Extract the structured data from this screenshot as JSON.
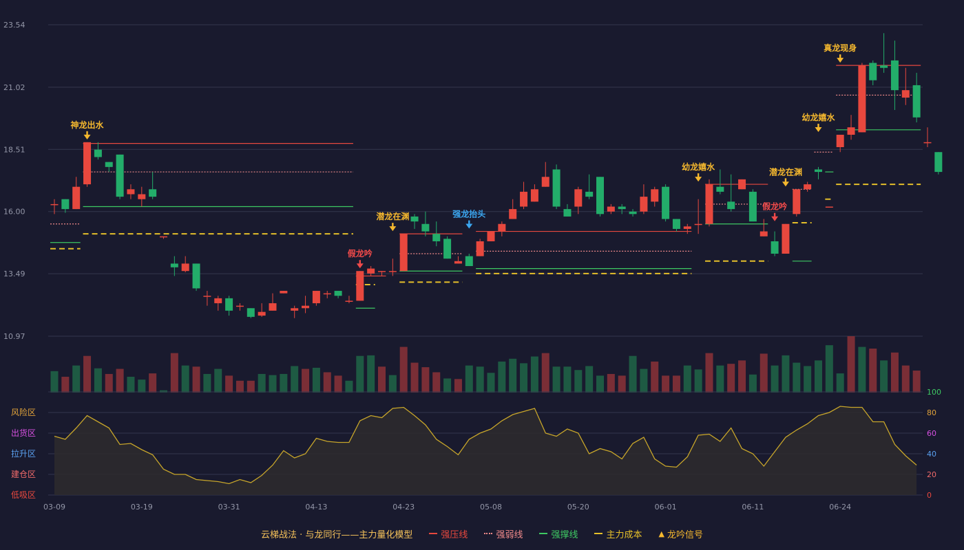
{
  "colors": {
    "background": "#191a2e",
    "grid": "#34374d",
    "axis_text": "#9497a8",
    "up": "#e8483e",
    "down": "#23ad6a",
    "vol_up": "#7a2e36",
    "vol_down": "#1e5a43",
    "resistance": "#e8483e",
    "weak": "#f08a8a",
    "support": "#3ec963",
    "cost": "#e6c02a",
    "signal": "#f5b82e",
    "signal_blue": "#3ba7f0",
    "signal_red": "#f04a4a",
    "osc_line": "#c8a62a",
    "osc_fill": "#2e2b2d"
  },
  "chart_data": {
    "type": "candlestick",
    "price_axis": {
      "ticks": [
        "23.54",
        "21.02",
        "18.51",
        "16.00",
        "13.49",
        "10.97"
      ],
      "ylim": [
        10.97,
        23.54
      ]
    },
    "x_tick_labels": [
      {
        "i": 0,
        "label": "03-09"
      },
      {
        "i": 8,
        "label": "03-19"
      },
      {
        "i": 16,
        "label": "03-31"
      },
      {
        "i": 24,
        "label": "04-13"
      },
      {
        "i": 32,
        "label": "04-23"
      },
      {
        "i": 40,
        "label": "05-08"
      },
      {
        "i": 48,
        "label": "05-20"
      },
      {
        "i": 56,
        "label": "06-01"
      },
      {
        "i": 64,
        "label": "06-11"
      },
      {
        "i": 72,
        "label": "06-24"
      }
    ],
    "candles": [
      [
        16.3,
        16.3,
        15.9,
        16.5
      ],
      [
        16.5,
        16.1,
        15.95,
        16.5
      ],
      [
        16.1,
        17.0,
        16.1,
        17.4
      ],
      [
        17.1,
        18.8,
        17.0,
        18.8
      ],
      [
        18.5,
        18.2,
        18.1,
        18.8
      ],
      [
        18.0,
        17.8,
        17.6,
        18.0
      ],
      [
        18.3,
        16.6,
        16.5,
        18.3
      ],
      [
        16.7,
        16.9,
        16.5,
        17.1
      ],
      [
        16.5,
        16.7,
        16.2,
        17.0
      ],
      [
        16.9,
        16.6,
        16.5,
        17.6
      ],
      [
        15.0,
        15.0,
        14.9,
        15.0
      ],
      [
        13.9,
        13.75,
        13.4,
        14.2
      ],
      [
        13.6,
        13.9,
        13.55,
        14.2
      ],
      [
        13.9,
        12.9,
        12.8,
        13.9
      ],
      [
        12.6,
        12.6,
        12.2,
        12.8
      ],
      [
        12.3,
        12.5,
        12.0,
        12.6
      ],
      [
        12.5,
        12.0,
        11.8,
        12.6
      ],
      [
        12.2,
        12.2,
        12.0,
        12.3
      ],
      [
        12.1,
        11.75,
        11.7,
        12.1
      ],
      [
        11.8,
        11.95,
        11.75,
        12.3
      ],
      [
        12.0,
        12.3,
        12.0,
        12.7
      ],
      [
        12.7,
        12.8,
        12.7,
        12.8
      ],
      [
        12.0,
        12.1,
        11.7,
        12.2
      ],
      [
        12.1,
        12.2,
        11.9,
        12.6
      ],
      [
        12.3,
        12.8,
        12.2,
        12.8
      ],
      [
        12.7,
        12.7,
        12.5,
        12.8
      ],
      [
        12.8,
        12.6,
        12.5,
        12.8
      ],
      [
        12.4,
        12.4,
        12.3,
        12.6
      ],
      [
        12.4,
        13.6,
        12.4,
        13.6
      ],
      [
        13.5,
        13.7,
        13.4,
        13.8
      ],
      [
        13.6,
        13.6,
        13.4,
        13.6
      ],
      [
        13.6,
        13.6,
        13.4,
        14.1
      ],
      [
        13.6,
        15.1,
        13.6,
        15.1
      ],
      [
        15.8,
        15.6,
        15.3,
        15.9
      ],
      [
        15.5,
        15.2,
        15.0,
        16.0
      ],
      [
        15.1,
        14.8,
        14.6,
        15.6
      ],
      [
        14.9,
        14.1,
        14.1,
        15.0
      ],
      [
        13.9,
        14.0,
        13.9,
        14.2
      ],
      [
        14.2,
        13.8,
        13.8,
        14.3
      ],
      [
        14.2,
        14.8,
        14.2,
        14.9
      ],
      [
        14.8,
        15.2,
        14.8,
        15.2
      ],
      [
        15.2,
        15.5,
        15.0,
        15.6
      ],
      [
        15.7,
        16.1,
        15.7,
        16.5
      ],
      [
        16.2,
        16.8,
        16.1,
        17.2
      ],
      [
        16.4,
        16.9,
        16.4,
        17.1
      ],
      [
        17.0,
        17.4,
        17.0,
        18.0
      ],
      [
        17.7,
        16.2,
        16.1,
        17.9
      ],
      [
        16.1,
        15.8,
        15.8,
        16.3
      ],
      [
        16.2,
        16.9,
        15.9,
        17.0
      ],
      [
        16.8,
        16.6,
        16.5,
        17.5
      ],
      [
        17.4,
        15.9,
        15.8,
        17.4
      ],
      [
        16.0,
        16.2,
        15.9,
        16.3
      ],
      [
        16.2,
        16.1,
        15.9,
        16.3
      ],
      [
        16.0,
        15.9,
        15.8,
        16.1
      ],
      [
        16.0,
        16.6,
        15.9,
        17.1
      ],
      [
        16.4,
        16.9,
        16.2,
        17.0
      ],
      [
        17.0,
        15.7,
        15.6,
        17.1
      ],
      [
        15.7,
        15.3,
        15.2,
        15.7
      ],
      [
        15.3,
        15.4,
        15.1,
        15.5
      ],
      [
        15.5,
        15.5,
        15.1,
        16.5
      ],
      [
        15.5,
        17.1,
        15.4,
        17.3
      ],
      [
        17.0,
        16.8,
        16.7,
        17.7
      ],
      [
        16.4,
        16.1,
        16.0,
        17.5
      ],
      [
        16.9,
        17.3,
        16.9,
        17.3
      ],
      [
        16.8,
        15.6,
        15.6,
        16.9
      ],
      [
        15.0,
        15.2,
        15.0,
        15.7
      ],
      [
        14.8,
        14.3,
        14.2,
        15.2
      ],
      [
        14.3,
        15.5,
        14.3,
        15.5
      ],
      [
        15.9,
        16.9,
        15.8,
        16.9
      ],
      [
        16.9,
        17.1,
        16.8,
        17.2
      ],
      [
        17.7,
        17.6,
        17.3,
        17.8
      ],
      [
        16.2,
        16.2,
        16.2,
        16.2
      ],
      [
        18.6,
        19.1,
        18.4,
        19.1
      ],
      [
        19.1,
        19.4,
        18.9,
        19.9
      ],
      [
        19.2,
        21.9,
        19.2,
        22.0
      ],
      [
        22.0,
        21.3,
        21.1,
        22.1
      ],
      [
        21.9,
        21.8,
        21.6,
        23.2
      ],
      [
        22.1,
        20.9,
        20.1,
        22.9
      ],
      [
        20.6,
        20.9,
        20.3,
        21.8
      ],
      [
        21.1,
        19.8,
        19.6,
        21.6
      ],
      [
        18.8,
        18.8,
        18.6,
        19.4
      ],
      [
        18.4,
        17.6,
        17.5,
        18.4
      ]
    ],
    "volume": [
      [
        0.38,
        0
      ],
      [
        0.28,
        1
      ],
      [
        0.48,
        0
      ],
      [
        0.65,
        1
      ],
      [
        0.43,
        0
      ],
      [
        0.33,
        1
      ],
      [
        0.42,
        1
      ],
      [
        0.28,
        0
      ],
      [
        0.23,
        0
      ],
      [
        0.34,
        1
      ],
      [
        0.04,
        0
      ],
      [
        0.7,
        1
      ],
      [
        0.48,
        0
      ],
      [
        0.46,
        1
      ],
      [
        0.33,
        0
      ],
      [
        0.42,
        0
      ],
      [
        0.3,
        1
      ],
      [
        0.21,
        1
      ],
      [
        0.21,
        1
      ],
      [
        0.33,
        0
      ],
      [
        0.31,
        0
      ],
      [
        0.33,
        0
      ],
      [
        0.47,
        0
      ],
      [
        0.42,
        1
      ],
      [
        0.44,
        0
      ],
      [
        0.36,
        1
      ],
      [
        0.3,
        1
      ],
      [
        0.21,
        0
      ],
      [
        0.65,
        0
      ],
      [
        0.66,
        0
      ],
      [
        0.46,
        1
      ],
      [
        0.31,
        0
      ],
      [
        0.81,
        1
      ],
      [
        0.53,
        1
      ],
      [
        0.45,
        1
      ],
      [
        0.36,
        1
      ],
      [
        0.25,
        0
      ],
      [
        0.24,
        1
      ],
      [
        0.48,
        0
      ],
      [
        0.46,
        0
      ],
      [
        0.35,
        0
      ],
      [
        0.55,
        0
      ],
      [
        0.6,
        0
      ],
      [
        0.52,
        0
      ],
      [
        0.64,
        0
      ],
      [
        0.7,
        1
      ],
      [
        0.46,
        0
      ],
      [
        0.46,
        0
      ],
      [
        0.4,
        0
      ],
      [
        0.47,
        0
      ],
      [
        0.3,
        0
      ],
      [
        0.33,
        1
      ],
      [
        0.3,
        1
      ],
      [
        0.65,
        0
      ],
      [
        0.42,
        0
      ],
      [
        0.55,
        1
      ],
      [
        0.3,
        1
      ],
      [
        0.3,
        1
      ],
      [
        0.48,
        0
      ],
      [
        0.41,
        0
      ],
      [
        0.7,
        1
      ],
      [
        0.48,
        0
      ],
      [
        0.51,
        1
      ],
      [
        0.57,
        1
      ],
      [
        0.32,
        0
      ],
      [
        0.69,
        1
      ],
      [
        0.48,
        0
      ],
      [
        0.66,
        0
      ],
      [
        0.53,
        0
      ],
      [
        0.47,
        0
      ],
      [
        0.57,
        0
      ],
      [
        0.84,
        0
      ],
      [
        0.34,
        0
      ],
      [
        1.0,
        1
      ],
      [
        0.81,
        0
      ],
      [
        0.78,
        1
      ],
      [
        0.57,
        0
      ],
      [
        0.71,
        1
      ],
      [
        0.48,
        1
      ],
      [
        0.39,
        1
      ]
    ],
    "oscillator": {
      "ylim": [
        0,
        100
      ],
      "ticks": [
        "100",
        "80",
        "60",
        "40",
        "20",
        "0"
      ],
      "zones": [
        "风险区",
        "出货区",
        "拉升区",
        "建仓区",
        "低吸区"
      ],
      "values": [
        57,
        54,
        65,
        77,
        71,
        65,
        49,
        50,
        44,
        39,
        25,
        20,
        20,
        15,
        14,
        13,
        11,
        15,
        12,
        19,
        29,
        43,
        36,
        40,
        55,
        52,
        51,
        51,
        72,
        77,
        75,
        84,
        85,
        77,
        68,
        54,
        47,
        39,
        54,
        60,
        64,
        72,
        78,
        81,
        84,
        60,
        57,
        64,
        60,
        40,
        45,
        42,
        35,
        50,
        56,
        35,
        28,
        27,
        37,
        58,
        59,
        52,
        65,
        45,
        40,
        28,
        42,
        56,
        63,
        69,
        77,
        80,
        86,
        85,
        85,
        71,
        71,
        49,
        38,
        29
      ]
    },
    "levels": [
      {
        "type": "resistance",
        "i0": 3,
        "i1": 27,
        "price": 18.75
      },
      {
        "type": "weak",
        "i0": 3,
        "i1": 27,
        "price": 17.6
      },
      {
        "type": "support",
        "i0": 3,
        "i1": 27,
        "price": 16.2
      },
      {
        "type": "cost",
        "i0": 3,
        "i1": 27,
        "price": 15.1
      },
      {
        "type": "weak",
        "i0": 0,
        "i1": 2,
        "price": 15.5
      },
      {
        "type": "support",
        "i0": 0,
        "i1": 2,
        "price": 14.75
      },
      {
        "type": "cost",
        "i0": 0,
        "i1": 2,
        "price": 14.5
      },
      {
        "type": "support",
        "i0": 28,
        "i1": 29,
        "price": 12.1
      },
      {
        "type": "cost",
        "i0": 28,
        "i1": 29,
        "price": 13.05
      },
      {
        "type": "resistance",
        "i0": 28,
        "i1": 30,
        "price": 13.4
      },
      {
        "type": "resistance",
        "i0": 32,
        "i1": 37,
        "price": 15.1
      },
      {
        "type": "weak",
        "i0": 32,
        "i1": 37,
        "price": 14.3
      },
      {
        "type": "support",
        "i0": 32,
        "i1": 37,
        "price": 13.6
      },
      {
        "type": "cost",
        "i0": 32,
        "i1": 37,
        "price": 13.15
      },
      {
        "type": "resistance",
        "i0": 39,
        "i1": 58,
        "price": 15.2
      },
      {
        "type": "weak",
        "i0": 39,
        "i1": 58,
        "price": 14.4
      },
      {
        "type": "support",
        "i0": 39,
        "i1": 58,
        "price": 13.7
      },
      {
        "type": "cost",
        "i0": 39,
        "i1": 58,
        "price": 13.5
      },
      {
        "type": "resistance",
        "i0": 60,
        "i1": 65,
        "price": 17.1
      },
      {
        "type": "weak",
        "i0": 60,
        "i1": 65,
        "price": 16.3
      },
      {
        "type": "support",
        "i0": 60,
        "i1": 65,
        "price": 15.5
      },
      {
        "type": "cost",
        "i0": 60,
        "i1": 65,
        "price": 14.0
      },
      {
        "type": "weak",
        "i0": 68,
        "i1": 69,
        "price": 16.9
      },
      {
        "type": "cost",
        "i0": 68,
        "i1": 69,
        "price": 15.55
      },
      {
        "type": "support",
        "i0": 68,
        "i1": 69,
        "price": 14.0
      },
      {
        "type": "weak",
        "i0": 70,
        "i1": 71,
        "price": 18.4
      },
      {
        "type": "support",
        "i0": 71,
        "i1": 71,
        "price": 17.6
      },
      {
        "type": "cost",
        "i0": 71,
        "i1": 71,
        "price": 16.5
      },
      {
        "type": "resistance",
        "i0": 72,
        "i1": 79,
        "price": 21.9
      },
      {
        "type": "weak",
        "i0": 72,
        "i1": 79,
        "price": 20.7
      },
      {
        "type": "support",
        "i0": 72,
        "i1": 79,
        "price": 19.3
      },
      {
        "type": "cost",
        "i0": 72,
        "i1": 79,
        "price": 17.1
      }
    ],
    "signals": [
      {
        "i": 3,
        "label": "神龙出水",
        "kind": "yellow",
        "price": 18.8
      },
      {
        "i": 28,
        "label": "假龙吟",
        "kind": "red",
        "price": 13.6
      },
      {
        "i": 31,
        "label": "潜龙在渊",
        "kind": "yellow",
        "price": 15.1
      },
      {
        "i": 38,
        "label": "强龙抬头",
        "kind": "blue",
        "price": 15.2
      },
      {
        "i": 59,
        "label": "幼龙嬉水",
        "kind": "yellow",
        "price": 17.1
      },
      {
        "i": 66,
        "label": "假龙吟",
        "kind": "red",
        "price": 15.5
      },
      {
        "i": 67,
        "label": "潜龙在渊",
        "kind": "yellow",
        "price": 16.9
      },
      {
        "i": 70,
        "label": "幼龙嬉水",
        "kind": "yellow",
        "price": 19.1
      },
      {
        "i": 72,
        "label": "真龙现身",
        "kind": "yellow",
        "price": 21.9
      }
    ]
  },
  "legend": {
    "title": "云梯战法 · 与龙同行——主力量化模型",
    "resistance": "强压线",
    "weak": "强弱线",
    "support": "强撑线",
    "cost": "主力成本",
    "signal": "龙吟信号"
  }
}
